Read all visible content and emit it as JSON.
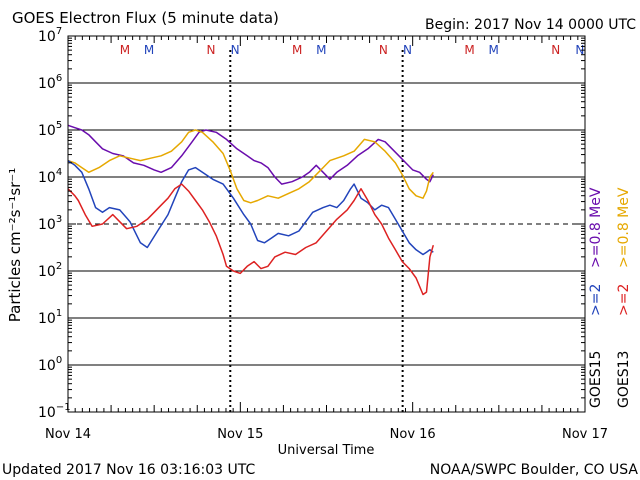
{
  "chart_data": {
    "type": "line",
    "title": "GOES Electron Flux (5 minute data)",
    "begin_label": "Begin: 2017 Nov 14 0000 UTC",
    "updated_label": "Updated 2017 Nov 16 03:16:03 UTC",
    "credit": "NOAA/SWPC Boulder, CO USA",
    "xlabel": "Universal Time",
    "ylabel": "Particles cm⁻²s⁻¹sr⁻¹",
    "y_scale": "log",
    "ylim_exp": [
      -1,
      7
    ],
    "ytick_exps": [
      7,
      6,
      5,
      4,
      3,
      2,
      1,
      0,
      -1
    ],
    "xlim_days": [
      0,
      3
    ],
    "xticks": [
      {
        "day": 0,
        "label": "Nov 14"
      },
      {
        "day": 1,
        "label": "Nov 15"
      },
      {
        "day": 2,
        "label": "Nov 16"
      },
      {
        "day": 3,
        "label": "Nov 17"
      }
    ],
    "threshold_line_exp": 3,
    "hour_marker_days": [
      0.9417,
      1.9417
    ],
    "station_labels": [
      {
        "day": 0.33,
        "text": "M",
        "color": "#cc2222"
      },
      {
        "day": 0.47,
        "text": "M",
        "color": "#2244bb"
      },
      {
        "day": 0.83,
        "text": "N",
        "color": "#cc2222"
      },
      {
        "day": 0.97,
        "text": "N",
        "color": "#2244bb"
      },
      {
        "day": 1.33,
        "text": "M",
        "color": "#cc2222"
      },
      {
        "day": 1.47,
        "text": "M",
        "color": "#2244bb"
      },
      {
        "day": 1.83,
        "text": "N",
        "color": "#cc2222"
      },
      {
        "day": 1.97,
        "text": "N",
        "color": "#2244bb"
      },
      {
        "day": 2.33,
        "text": "M",
        "color": "#cc2222"
      },
      {
        "day": 2.47,
        "text": "M",
        "color": "#2244bb"
      },
      {
        "day": 2.83,
        "text": "N",
        "color": "#cc2222"
      },
      {
        "day": 2.97,
        "text": "N",
        "color": "#2244bb"
      }
    ],
    "legend": [
      {
        "group": "GOES15",
        "text": ">=2",
        "color": "#2244bb"
      },
      {
        "group": "GOES15",
        "text": ">=0.8 MeV",
        "color": "#6a0dad"
      },
      {
        "group": "GOES13",
        "text": ">=2",
        "color": "#dd2222"
      },
      {
        "group": "GOES13",
        "text": ">=0.8 MeV",
        "color": "#e6a800"
      }
    ],
    "series": [
      {
        "name": "GOES15 >=0.8 MeV",
        "color": "#6a0dad",
        "points": [
          [
            0.0,
            5.1
          ],
          [
            0.04,
            5.05
          ],
          [
            0.08,
            5.0
          ],
          [
            0.12,
            4.9
          ],
          [
            0.16,
            4.75
          ],
          [
            0.2,
            4.6
          ],
          [
            0.26,
            4.5
          ],
          [
            0.32,
            4.45
          ],
          [
            0.38,
            4.3
          ],
          [
            0.44,
            4.25
          ],
          [
            0.5,
            4.15
          ],
          [
            0.54,
            4.1
          ],
          [
            0.6,
            4.2
          ],
          [
            0.66,
            4.45
          ],
          [
            0.72,
            4.75
          ],
          [
            0.76,
            4.95
          ],
          [
            0.8,
            5.0
          ],
          [
            0.86,
            4.95
          ],
          [
            0.92,
            4.8
          ],
          [
            0.98,
            4.6
          ],
          [
            1.04,
            4.45
          ],
          [
            1.08,
            4.35
          ],
          [
            1.12,
            4.3
          ],
          [
            1.16,
            4.2
          ],
          [
            1.2,
            4.0
          ],
          [
            1.24,
            3.85
          ],
          [
            1.3,
            3.9
          ],
          [
            1.36,
            4.0
          ],
          [
            1.4,
            4.1
          ],
          [
            1.44,
            4.25
          ],
          [
            1.48,
            4.1
          ],
          [
            1.52,
            3.95
          ],
          [
            1.56,
            4.1
          ],
          [
            1.62,
            4.25
          ],
          [
            1.68,
            4.45
          ],
          [
            1.74,
            4.6
          ],
          [
            1.8,
            4.8
          ],
          [
            1.84,
            4.75
          ],
          [
            1.88,
            4.6
          ],
          [
            1.92,
            4.45
          ],
          [
            1.96,
            4.3
          ],
          [
            2.0,
            4.15
          ],
          [
            2.04,
            4.1
          ],
          [
            2.08,
            3.95
          ],
          [
            2.1,
            3.9
          ],
          [
            2.12,
            4.05
          ]
        ]
      },
      {
        "name": "GOES13 >=0.8 MeV",
        "color": "#e6a800",
        "points": [
          [
            0.0,
            4.35
          ],
          [
            0.04,
            4.3
          ],
          [
            0.08,
            4.2
          ],
          [
            0.12,
            4.1
          ],
          [
            0.18,
            4.2
          ],
          [
            0.24,
            4.35
          ],
          [
            0.3,
            4.45
          ],
          [
            0.36,
            4.4
          ],
          [
            0.42,
            4.35
          ],
          [
            0.48,
            4.4
          ],
          [
            0.54,
            4.45
          ],
          [
            0.6,
            4.55
          ],
          [
            0.66,
            4.75
          ],
          [
            0.7,
            4.95
          ],
          [
            0.74,
            5.0
          ],
          [
            0.78,
            4.95
          ],
          [
            0.84,
            4.75
          ],
          [
            0.9,
            4.5
          ],
          [
            0.94,
            4.15
          ],
          [
            0.98,
            3.75
          ],
          [
            1.02,
            3.5
          ],
          [
            1.06,
            3.45
          ],
          [
            1.1,
            3.5
          ],
          [
            1.16,
            3.6
          ],
          [
            1.22,
            3.55
          ],
          [
            1.28,
            3.65
          ],
          [
            1.34,
            3.75
          ],
          [
            1.4,
            3.9
          ],
          [
            1.44,
            4.05
          ],
          [
            1.48,
            4.2
          ],
          [
            1.52,
            4.35
          ],
          [
            1.6,
            4.45
          ],
          [
            1.66,
            4.55
          ],
          [
            1.72,
            4.8
          ],
          [
            1.78,
            4.75
          ],
          [
            1.84,
            4.55
          ],
          [
            1.9,
            4.3
          ],
          [
            1.94,
            4.05
          ],
          [
            1.98,
            3.75
          ],
          [
            2.02,
            3.6
          ],
          [
            2.06,
            3.55
          ],
          [
            2.08,
            3.7
          ],
          [
            2.1,
            4.0
          ],
          [
            2.12,
            4.1
          ]
        ]
      },
      {
        "name": "GOES15 >=2 MeV",
        "color": "#2244bb",
        "points": [
          [
            0.0,
            4.35
          ],
          [
            0.04,
            4.25
          ],
          [
            0.08,
            4.1
          ],
          [
            0.12,
            3.75
          ],
          [
            0.16,
            3.35
          ],
          [
            0.2,
            3.25
          ],
          [
            0.24,
            3.35
          ],
          [
            0.3,
            3.3
          ],
          [
            0.36,
            3.05
          ],
          [
            0.42,
            2.6
          ],
          [
            0.46,
            2.5
          ],
          [
            0.52,
            2.85
          ],
          [
            0.58,
            3.2
          ],
          [
            0.62,
            3.55
          ],
          [
            0.66,
            3.9
          ],
          [
            0.7,
            4.15
          ],
          [
            0.74,
            4.2
          ],
          [
            0.78,
            4.1
          ],
          [
            0.84,
            3.95
          ],
          [
            0.9,
            3.85
          ],
          [
            0.96,
            3.55
          ],
          [
            1.02,
            3.2
          ],
          [
            1.06,
            3.0
          ],
          [
            1.1,
            2.65
          ],
          [
            1.14,
            2.6
          ],
          [
            1.18,
            2.7
          ],
          [
            1.22,
            2.8
          ],
          [
            1.28,
            2.75
          ],
          [
            1.34,
            2.85
          ],
          [
            1.38,
            3.05
          ],
          [
            1.42,
            3.25
          ],
          [
            1.48,
            3.35
          ],
          [
            1.52,
            3.4
          ],
          [
            1.56,
            3.35
          ],
          [
            1.6,
            3.5
          ],
          [
            1.64,
            3.75
          ],
          [
            1.66,
            3.85
          ],
          [
            1.7,
            3.55
          ],
          [
            1.74,
            3.45
          ],
          [
            1.78,
            3.3
          ],
          [
            1.82,
            3.4
          ],
          [
            1.86,
            3.35
          ],
          [
            1.9,
            3.1
          ],
          [
            1.94,
            2.85
          ],
          [
            1.98,
            2.6
          ],
          [
            2.02,
            2.45
          ],
          [
            2.06,
            2.35
          ],
          [
            2.08,
            2.4
          ],
          [
            2.1,
            2.45
          ],
          [
            2.12,
            2.4
          ]
        ]
      },
      {
        "name": "GOES13 >=2 MeV",
        "color": "#dd2222",
        "points": [
          [
            0.0,
            3.75
          ],
          [
            0.04,
            3.6
          ],
          [
            0.06,
            3.5
          ],
          [
            0.1,
            3.2
          ],
          [
            0.14,
            2.95
          ],
          [
            0.2,
            3.0
          ],
          [
            0.26,
            3.2
          ],
          [
            0.3,
            3.05
          ],
          [
            0.34,
            2.9
          ],
          [
            0.4,
            2.95
          ],
          [
            0.46,
            3.1
          ],
          [
            0.5,
            3.25
          ],
          [
            0.54,
            3.4
          ],
          [
            0.58,
            3.55
          ],
          [
            0.62,
            3.75
          ],
          [
            0.66,
            3.85
          ],
          [
            0.7,
            3.7
          ],
          [
            0.74,
            3.5
          ],
          [
            0.78,
            3.3
          ],
          [
            0.82,
            3.05
          ],
          [
            0.86,
            2.75
          ],
          [
            0.9,
            2.35
          ],
          [
            0.92,
            2.1
          ],
          [
            0.96,
            2.0
          ],
          [
            1.0,
            1.95
          ],
          [
            1.04,
            2.1
          ],
          [
            1.08,
            2.2
          ],
          [
            1.12,
            2.05
          ],
          [
            1.16,
            2.1
          ],
          [
            1.2,
            2.3
          ],
          [
            1.26,
            2.4
          ],
          [
            1.32,
            2.35
          ],
          [
            1.38,
            2.5
          ],
          [
            1.44,
            2.6
          ],
          [
            1.5,
            2.85
          ],
          [
            1.56,
            3.1
          ],
          [
            1.62,
            3.3
          ],
          [
            1.66,
            3.5
          ],
          [
            1.7,
            3.75
          ],
          [
            1.74,
            3.5
          ],
          [
            1.78,
            3.2
          ],
          [
            1.82,
            3.0
          ],
          [
            1.86,
            2.7
          ],
          [
            1.9,
            2.45
          ],
          [
            1.94,
            2.2
          ],
          [
            1.98,
            2.05
          ],
          [
            2.02,
            1.85
          ],
          [
            2.06,
            1.5
          ],
          [
            2.08,
            1.55
          ],
          [
            2.1,
            2.3
          ],
          [
            2.12,
            2.55
          ]
        ]
      }
    ]
  }
}
